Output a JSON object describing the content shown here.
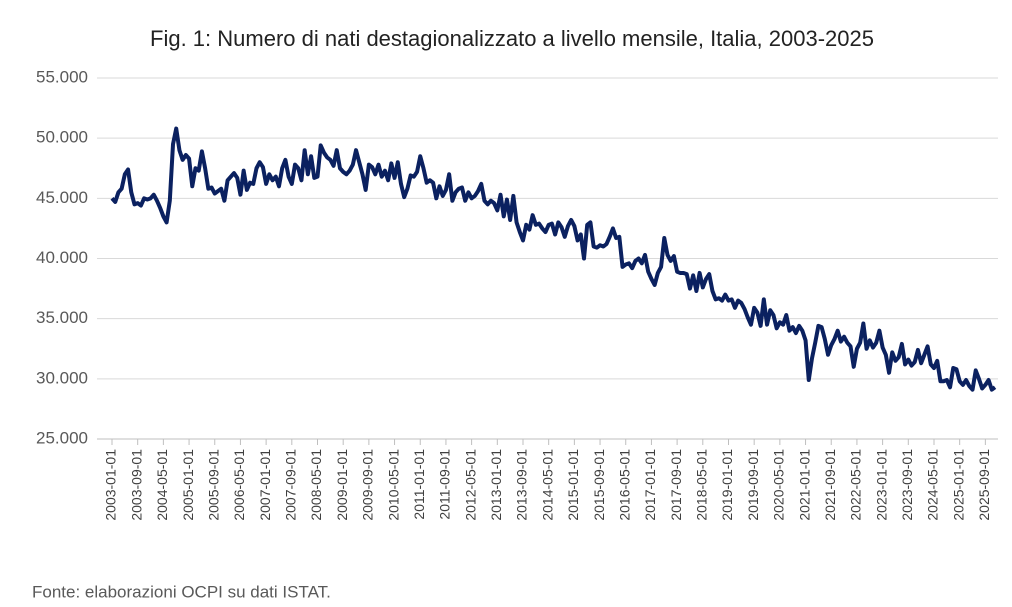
{
  "chart_data": {
    "type": "line",
    "title": "Fig. 1: Numero di nati destagionalizzato a livello mensile, Italia, 2003-2025",
    "note": "Fonte: elaborazioni OCPI su dati ISTAT.",
    "categories": [
      "2003-01-01",
      null,
      null,
      null,
      null,
      null,
      null,
      null,
      "2003-09-01",
      null,
      null,
      null,
      null,
      null,
      null,
      null,
      "2004-05-01",
      null,
      null,
      null,
      null,
      null,
      null,
      null,
      "2005-01-01",
      null,
      null,
      null,
      null,
      null,
      null,
      null,
      "2005-09-01",
      null,
      null,
      null,
      null,
      null,
      null,
      null,
      "2006-05-01",
      null,
      null,
      null,
      null,
      null,
      null,
      null,
      "2007-01-01",
      null,
      null,
      null,
      null,
      null,
      null,
      null,
      "2007-09-01",
      null,
      null,
      null,
      null,
      null,
      null,
      null,
      "2008-05-01",
      null,
      null,
      null,
      null,
      null,
      null,
      null,
      "2009-01-01",
      null,
      null,
      null,
      null,
      null,
      null,
      null,
      "2009-09-01",
      null,
      null,
      null,
      null,
      null,
      null,
      null,
      "2010-05-01",
      null,
      null,
      null,
      null,
      null,
      null,
      null,
      "2011-01-01",
      null,
      null,
      null,
      null,
      null,
      null,
      null,
      "2011-09-01",
      null,
      null,
      null,
      null,
      null,
      null,
      null,
      "2012-05-01",
      null,
      null,
      null,
      null,
      null,
      null,
      null,
      "2013-01-01",
      null,
      null,
      null,
      null,
      null,
      null,
      null,
      "2013-09-01",
      null,
      null,
      null,
      null,
      null,
      null,
      null,
      "2014-05-01",
      null,
      null,
      null,
      null,
      null,
      null,
      null,
      "2015-01-01",
      null,
      null,
      null,
      null,
      null,
      null,
      null,
      "2015-09-01",
      null,
      null,
      null,
      null,
      null,
      null,
      null,
      "2016-05-01",
      null,
      null,
      null,
      null,
      null,
      null,
      null,
      "2017-01-01",
      null,
      null,
      null,
      null,
      null,
      null,
      null,
      "2017-09-01",
      null,
      null,
      null,
      null,
      null,
      null,
      null,
      "2018-05-01",
      null,
      null,
      null,
      null,
      null,
      null,
      null,
      "2019-01-01",
      null,
      null,
      null,
      null,
      null,
      null,
      null,
      "2019-09-01",
      null,
      null,
      null,
      null,
      null,
      null,
      null,
      "2020-05-01",
      null,
      null,
      null,
      null,
      null,
      null,
      null,
      "2021-01-01",
      null,
      null,
      null,
      null,
      null,
      null,
      null,
      "2021-09-01",
      null,
      null,
      null,
      null,
      null,
      null,
      null,
      "2022-05-01",
      null,
      null,
      null,
      null,
      null,
      null,
      null,
      "2023-01-01",
      null,
      null,
      null,
      null,
      null,
      null,
      null,
      "2023-09-01",
      null,
      null,
      null,
      null,
      null,
      null,
      null,
      "2024-05-01",
      null,
      null,
      null,
      null,
      null,
      null,
      null,
      "2025-01-01",
      null,
      null,
      null,
      null,
      null,
      null,
      null,
      "2025-09-01",
      null,
      null,
      null
    ],
    "series": [
      {
        "color": "#0b2160",
        "values": [
          45000,
          44700,
          45500,
          45800,
          47000,
          47400,
          45500,
          44500,
          44600,
          44400,
          45000,
          44900,
          45000,
          45300,
          44800,
          44200,
          43500,
          43000,
          44800,
          49500,
          50800,
          49000,
          48200,
          48600,
          48300,
          46000,
          47500,
          47300,
          48900,
          47500,
          45800,
          45900,
          45400,
          45600,
          45800,
          44800,
          46500,
          46800,
          47100,
          46700,
          45300,
          47300,
          45700,
          46300,
          46200,
          47500,
          48000,
          47600,
          46200,
          47000,
          46500,
          46800,
          46000,
          47500,
          48200,
          46800,
          46200,
          47800,
          47500,
          46500,
          49000,
          47000,
          48500,
          46700,
          46800,
          49400,
          48800,
          48400,
          48200,
          47700,
          49000,
          47500,
          47200,
          47000,
          47300,
          47800,
          49000,
          48000,
          47000,
          45700,
          47800,
          47600,
          47000,
          47800,
          46800,
          47300,
          46500,
          47900,
          46700,
          48000,
          46200,
          45100,
          45800,
          46900,
          46800,
          47200,
          48500,
          47500,
          46300,
          46500,
          46300,
          45000,
          46000,
          45200,
          45700,
          47000,
          44800,
          45500,
          45800,
          45900,
          44800,
          45500,
          45000,
          45200,
          45600,
          46200,
          44800,
          44500,
          44800,
          44600,
          44000,
          45300,
          43500,
          44900,
          43200,
          45200,
          43000,
          42200,
          41500,
          42800,
          42400,
          43600,
          42800,
          42900,
          42500,
          42200,
          42800,
          42900,
          42000,
          43000,
          42600,
          41800,
          42700,
          43200,
          42700,
          41500,
          42000,
          40000,
          42800,
          43000,
          41000,
          40900,
          41100,
          41000,
          41200,
          41800,
          42500,
          41700,
          41800,
          39300,
          39500,
          39600,
          39200,
          39800,
          40000,
          39600,
          40300,
          38900,
          38300,
          37800,
          38800,
          39300,
          41700,
          40300,
          39800,
          40200,
          38900,
          38800,
          38800,
          38700,
          37500,
          38600,
          37300,
          38800,
          37600,
          38300,
          38700,
          37300,
          36600,
          36700,
          36500,
          37000,
          36500,
          36600,
          35900,
          36500,
          36300,
          35800,
          35100,
          34500,
          35900,
          35500,
          34400,
          36600,
          34500,
          35700,
          35300,
          34200,
          34700,
          34500,
          35300,
          34000,
          34300,
          33800,
          34400,
          34000,
          33200,
          29900,
          31700,
          33000,
          34400,
          34300,
          33300,
          32000,
          32800,
          33300,
          34000,
          33100,
          33500,
          33000,
          32700,
          31000,
          32500,
          33000,
          34600,
          32500,
          33200,
          32600,
          33000,
          34000,
          32600,
          32000,
          30500,
          32200,
          31500,
          31800,
          32900,
          31200,
          31600,
          31100,
          31400,
          32400,
          31300,
          32000,
          32700,
          31200,
          30900,
          31500,
          29800,
          29800,
          29900,
          29300,
          30900,
          30800,
          29800,
          29500,
          29900,
          29400,
          29100,
          30700,
          30000,
          29200,
          29500,
          29900,
          29100,
          29300
        ]
      }
    ],
    "ylim": [
      25000,
      55000
    ],
    "yticks": [
      {
        "value": 25000,
        "label": "25.000"
      },
      {
        "value": 30000,
        "label": "30.000"
      },
      {
        "value": 35000,
        "label": "35.000"
      },
      {
        "value": 40000,
        "label": "40.000"
      },
      {
        "value": 45000,
        "label": "45.000"
      },
      {
        "value": 50000,
        "label": "50.000"
      },
      {
        "value": 55000,
        "label": "55.000"
      }
    ],
    "grid": true
  }
}
